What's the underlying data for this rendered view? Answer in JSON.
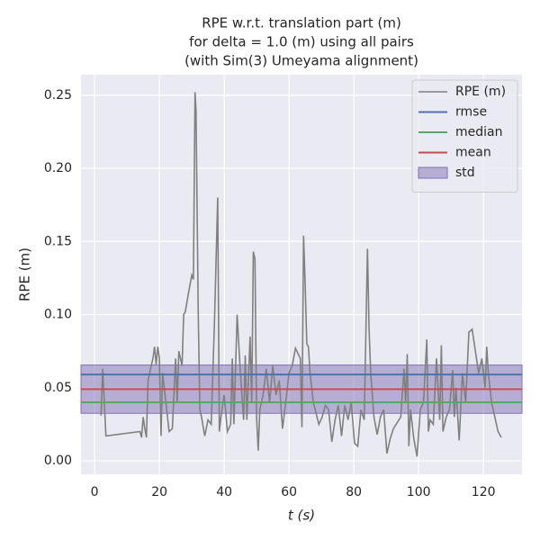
{
  "chart_data": {
    "type": "line",
    "title": [
      "RPE w.r.t. translation part (m)",
      "for delta = 1.0 (m) using all pairs",
      "(with Sim(3) Umeyama alignment)"
    ],
    "xlabel": "t (s)",
    "ylabel": "RPE (m)",
    "xlim": [
      -4.2,
      131.9
    ],
    "ylim": [
      -0.0092,
      0.264
    ],
    "xticks": [
      0,
      20,
      40,
      60,
      80,
      100,
      120
    ],
    "yticks": [
      {
        "value": 0,
        "label": "0.00"
      },
      0.05,
      {
        "value": 0.1,
        "label": "0.10"
      },
      0.15,
      {
        "value": 0.2,
        "label": "0.20"
      },
      0.25
    ],
    "grid": true,
    "legend": "upper right",
    "series": [
      {
        "name": "RPE (m)",
        "color": "#808080",
        "x": [
          2,
          2.5,
          3,
          3.5,
          14,
          14.5,
          15,
          15.5,
          16,
          16.5,
          17.5,
          18,
          18.5,
          19,
          19.5,
          20,
          20.5,
          21,
          22,
          23,
          24,
          25,
          25.5,
          26,
          27,
          27.5,
          28,
          29,
          30,
          30.5,
          31,
          31.3,
          32,
          32.5,
          33,
          34,
          35,
          36,
          37,
          38,
          38.5,
          39,
          40,
          41,
          42,
          42.5,
          43,
          44,
          45,
          46,
          46.5,
          47,
          48,
          48.5,
          49,
          49.5,
          50,
          50.5,
          51,
          52,
          53,
          54,
          55,
          56,
          57,
          58,
          59,
          60,
          61,
          62,
          63.5,
          64,
          64.5,
          65,
          65.5,
          66,
          66.5,
          67.5,
          69.2,
          70.2,
          71.2,
          72.2,
          73.2,
          74.2,
          75.2,
          76.2,
          77.2,
          78.2,
          79.2,
          80.2,
          81.2,
          82.2,
          83.2,
          84.2,
          84.7,
          85.2,
          86.2,
          87.2,
          88.2,
          89.2,
          90.2,
          91.2,
          92.2,
          94.5,
          95.5,
          96,
          96.5,
          97,
          97.5,
          98.5,
          99.5,
          100.5,
          101.5,
          102.5,
          103,
          103.5,
          104.5,
          105.5,
          106.5,
          107,
          107.5,
          108.5,
          109.5,
          110.5,
          111,
          111.5,
          112.5,
          113.5,
          114.5,
          115.5,
          116.5,
          117.5,
          118.5,
          119.5,
          120.5,
          121,
          121.5,
          122.5,
          123.5,
          124.5,
          125.5
        ],
        "values": [
          0.031,
          0.063,
          0.04,
          0.017,
          0.02,
          0.016,
          0.03,
          0.022,
          0.016,
          0.055,
          0.065,
          0.07,
          0.078,
          0.066,
          0.078,
          0.07,
          0.017,
          0.06,
          0.04,
          0.02,
          0.022,
          0.07,
          0.04,
          0.075,
          0.065,
          0.1,
          0.102,
          0.115,
          0.127,
          0.124,
          0.252,
          0.24,
          0.1,
          0.035,
          0.03,
          0.017,
          0.028,
          0.025,
          0.095,
          0.18,
          0.02,
          0.03,
          0.045,
          0.02,
          0.025,
          0.07,
          0.025,
          0.1,
          0.06,
          0.028,
          0.072,
          0.028,
          0.085,
          0.04,
          0.143,
          0.138,
          0.03,
          0.007,
          0.035,
          0.045,
          0.063,
          0.04,
          0.065,
          0.045,
          0.055,
          0.022,
          0.04,
          0.06,
          0.065,
          0.077,
          0.07,
          0.023,
          0.154,
          0.12,
          0.08,
          0.078,
          0.06,
          0.04,
          0.025,
          0.03,
          0.038,
          0.035,
          0.013,
          0.028,
          0.038,
          0.017,
          0.038,
          0.028,
          0.04,
          0.012,
          0.01,
          0.035,
          0.028,
          0.145,
          0.09,
          0.06,
          0.03,
          0.018,
          0.03,
          0.035,
          0.005,
          0.015,
          0.022,
          0.03,
          0.063,
          0.04,
          0.073,
          0.01,
          0.035,
          0.015,
          0.003,
          0.035,
          0.04,
          0.083,
          0.02,
          0.028,
          0.025,
          0.07,
          0.028,
          0.079,
          0.02,
          0.03,
          0.035,
          0.062,
          0.03,
          0.05,
          0.014,
          0.06,
          0.04,
          0.088,
          0.09,
          0.075,
          0.06,
          0.07,
          0.05,
          0.078,
          0.06,
          0.04,
          0.03,
          0.02,
          0.016
        ]
      }
    ],
    "hlines": [
      {
        "name": "rmse",
        "color": "#4c72b0",
        "value": 0.059
      },
      {
        "name": "median",
        "color": "#55a868",
        "value": 0.04
      },
      {
        "name": "mean",
        "color": "#c44e52",
        "value": 0.049
      }
    ],
    "band": {
      "name": "std",
      "color": "#8172b2",
      "value": 0.0165
    }
  }
}
